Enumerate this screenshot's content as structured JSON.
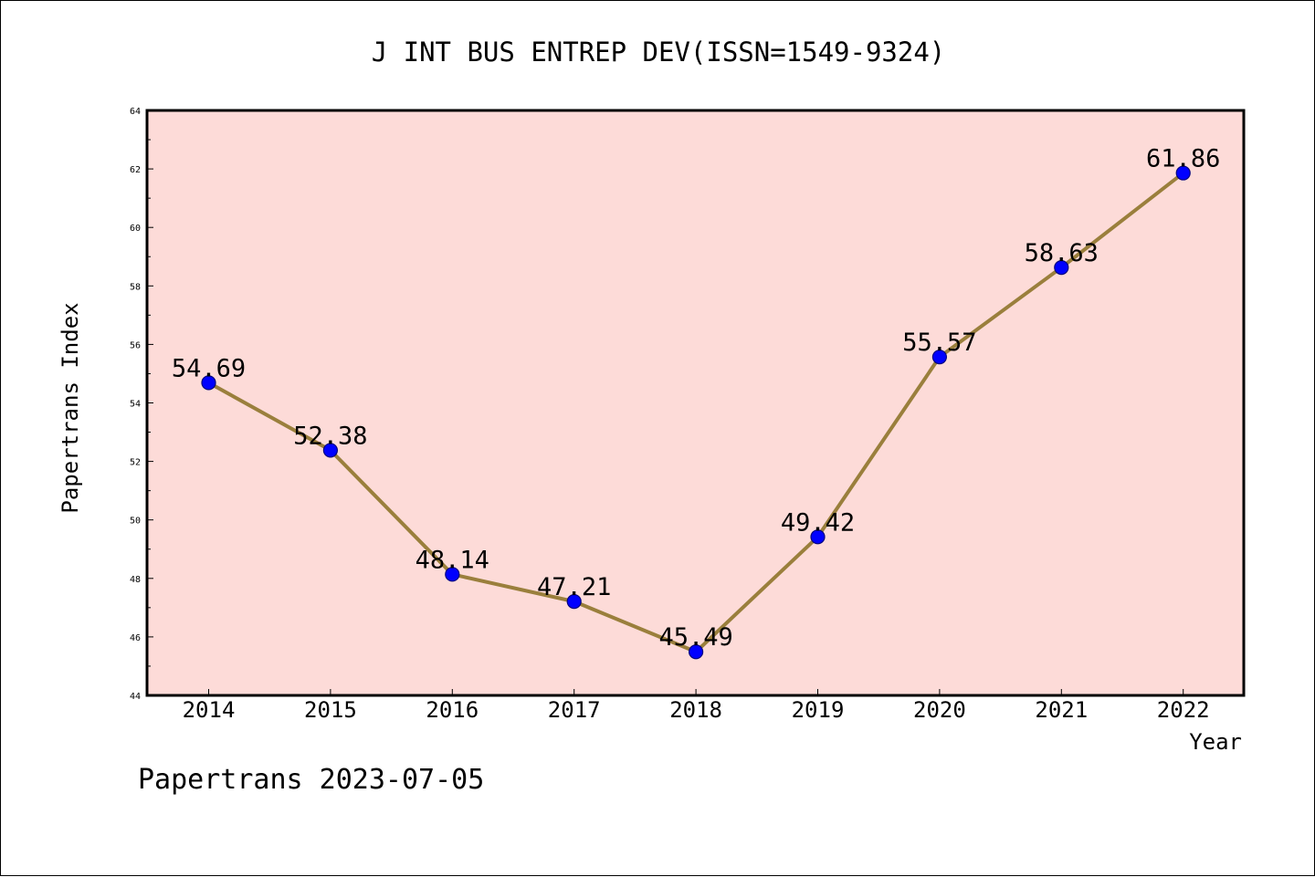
{
  "footer": "Papertrans 2023-07-05",
  "chart_data": {
    "type": "line",
    "title": "J INT BUS ENTREP DEV(ISSN=1549-9324)",
    "xlabel": "Year",
    "ylabel": "Papertrans Index",
    "x": [
      "2014",
      "2015",
      "2016",
      "2017",
      "2018",
      "2019",
      "2020",
      "2021",
      "2022"
    ],
    "series": [
      {
        "values": [
          54.69,
          52.38,
          48.14,
          47.21,
          45.49,
          49.42,
          55.57,
          58.63,
          61.86
        ],
        "labels": [
          "54.69",
          "52.38",
          "48.14",
          "47.21",
          "45.49",
          "49.42",
          "55.57",
          "58.63",
          "61.86"
        ]
      }
    ],
    "ylim": [
      44,
      64
    ],
    "yticks": [
      "44",
      "46",
      "48",
      "50",
      "52",
      "54",
      "56",
      "58",
      "60",
      "62",
      "64"
    ],
    "grid": false,
    "legend": "none",
    "colors": {
      "plot_background": "#fddbd8",
      "line": "#9a7f3c",
      "marker_fill": "#0000ff",
      "marker_edge": "#000080",
      "frame": "#000000"
    }
  }
}
